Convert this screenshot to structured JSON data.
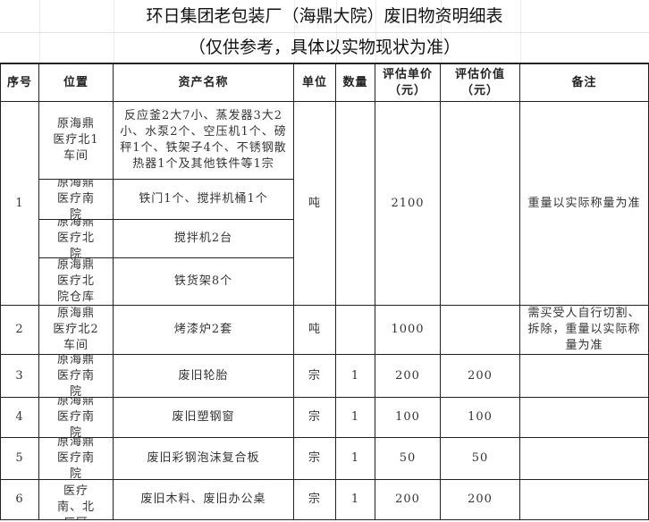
{
  "title": "环日集团老包装厂（海鼎大院）废旧物资明细表",
  "subtitle": "（仅供参考，具体以实物现状为准）",
  "headers": [
    "序号",
    "位置",
    "资产名称",
    "单位",
    "数量",
    "评估单价（元）",
    "评估价值（元）",
    "备注"
  ],
  "rows": [
    {
      "no": "1",
      "unit": "吨",
      "qty": "",
      "price": "2100",
      "value": "",
      "note": "重量以实际称量为准",
      "items": [
        {
          "location": "原海鼎医疗北1车间",
          "name": "反应釜2大7小、蒸发器3大2小、水泵2个、空压机1个、磅秤1个、铁架子4个、不锈钢散热器1个及其他铁件等1宗"
        },
        {
          "location": "原海鼎医疗南院",
          "name": "铁门1个、搅拌机桶1个"
        },
        {
          "location": "原海鼎医疗北院",
          "name": "搅拌机2台"
        },
        {
          "location": "原海鼎医疗北院仓库",
          "name": "铁货架8个"
        }
      ]
    },
    {
      "no": "2",
      "unit": "吨",
      "qty": "",
      "price": "1000",
      "value": "",
      "note": "需买受人自行切割、拆除，重量以实际称量为准",
      "items": [
        {
          "location": "原海鼎医疗北2车间",
          "name": "烤漆炉2套"
        }
      ]
    },
    {
      "no": "3",
      "unit": "宗",
      "qty": "1",
      "price": "200",
      "value": "200",
      "note": "",
      "items": [
        {
          "location": "原海鼎医疗南院",
          "name": "废旧轮胎"
        }
      ]
    },
    {
      "no": "4",
      "unit": "宗",
      "qty": "1",
      "price": "100",
      "value": "100",
      "note": "",
      "items": [
        {
          "location": "原海鼎医疗南院",
          "name": "废旧塑钢窗"
        }
      ]
    },
    {
      "no": "5",
      "unit": "宗",
      "qty": "1",
      "price": "50",
      "value": "50",
      "note": "",
      "items": [
        {
          "location": "原海鼎医疗南院",
          "name": "废旧彩钢泡沫复合板"
        }
      ]
    },
    {
      "no": "6",
      "unit": "宗",
      "qty": "1",
      "price": "200",
      "value": "200",
      "note": "",
      "items": [
        {
          "location": "原海鼎医疗南、北厂区",
          "name": "废旧木料、废旧办公桌"
        }
      ]
    }
  ]
}
